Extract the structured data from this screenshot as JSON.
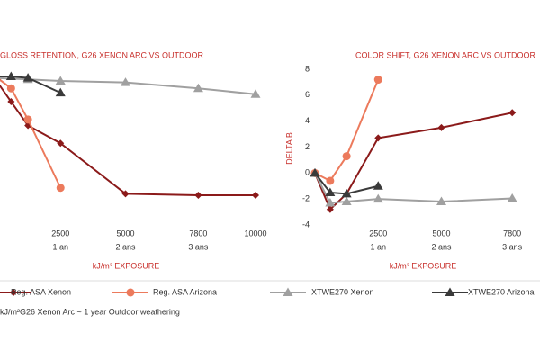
{
  "chart_data": [
    {
      "type": "line",
      "title": "GLOSS RETENTION, G26 XENON ARC VS OUTDOOR",
      "xlabel": "kJ/m² EXPOSURE",
      "xlim": [
        0,
        10000
      ],
      "xticks": [
        2500,
        5000,
        7800,
        10000
      ],
      "xtick_sublabels": [
        "1 an",
        "2 ans",
        "3 ans"
      ],
      "ylim": [
        0,
        100
      ],
      "series": [
        {
          "name": "Reg. ASA Xenon",
          "color": "#8b1a1a",
          "marker": "diamond",
          "x": [
            0,
            600,
            1250,
            2500,
            5000,
            7800,
            10000
          ],
          "values": [
            98,
            83,
            67,
            55,
            21,
            20,
            20
          ]
        },
        {
          "name": "Reg. ASA Arizona",
          "color": "#ec7a5c",
          "marker": "circle",
          "x": [
            0,
            600,
            1250,
            2500
          ],
          "values": [
            100,
            92,
            71,
            25
          ]
        },
        {
          "name": "XTWE270 Xenon",
          "color": "#a0a0a0",
          "marker": "triangle",
          "x": [
            0,
            1250,
            2500,
            5000,
            7800,
            10000
          ],
          "values": [
            99,
            98,
            97,
            96,
            92,
            88
          ]
        },
        {
          "name": "XTWE270 Arizona",
          "color": "#3a3a3a",
          "marker": "triangle",
          "x": [
            0,
            600,
            1250,
            2500
          ],
          "values": [
            100,
            100,
            99,
            89
          ]
        }
      ]
    },
    {
      "type": "line",
      "title": "COLOR SHIFT, G26 XENON ARC VS OUTDOOR",
      "xlabel": "kJ/m² EXPOSURE",
      "ylabel": "DELTA B",
      "xlim": [
        0,
        10000
      ],
      "xticks": [
        2500,
        5000,
        7800
      ],
      "xtick_sublabels": [
        "1 an",
        "2 ans",
        "3 ans"
      ],
      "ylim": [
        -4,
        8
      ],
      "yticks": [
        -4,
        -2,
        0,
        2,
        4,
        6,
        8
      ],
      "series": [
        {
          "name": "Reg. ASA Xenon",
          "color": "#8b1a1a",
          "marker": "diamond",
          "x": [
            0,
            600,
            1250,
            2500,
            5000,
            7800
          ],
          "values": [
            0,
            -2.8,
            -1.6,
            2.7,
            3.5,
            4.65
          ]
        },
        {
          "name": "Reg. ASA Arizona",
          "color": "#ec7a5c",
          "marker": "circle",
          "x": [
            0,
            600,
            1250,
            2500
          ],
          "values": [
            0,
            -0.6,
            1.3,
            7.2
          ]
        },
        {
          "name": "XTWE270 Xenon",
          "color": "#a0a0a0",
          "marker": "triangle",
          "x": [
            0,
            600,
            1250,
            2500,
            5000,
            7800
          ],
          "values": [
            0,
            -2.3,
            -2.2,
            -2.0,
            -2.2,
            -1.95
          ]
        },
        {
          "name": "XTWE270 Arizona",
          "color": "#3a3a3a",
          "marker": "triangle",
          "x": [
            0,
            600,
            1250,
            2500
          ],
          "values": [
            0,
            -1.5,
            -1.6,
            -1.0
          ]
        }
      ]
    }
  ],
  "footnote": "kJ/m²G26 Xenon Arc ~ 1 year Outdoor weathering"
}
